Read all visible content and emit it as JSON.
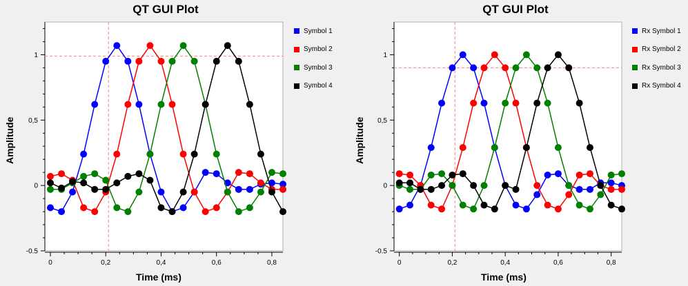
{
  "chart_data": [
    {
      "type": "line",
      "title": "QT GUI Plot",
      "xlabel": "Time (ms)",
      "ylabel": "Amplitude",
      "xlim": [
        -0.02,
        0.84
      ],
      "ylim": [
        -0.5,
        1.25
      ],
      "xticks": [
        "0",
        "0,2",
        "0,4",
        "0,6",
        "0,8"
      ],
      "yticks": [
        "-0.5",
        "0",
        "0,5",
        "1"
      ],
      "marker_x": 0.21,
      "marker_y": 0.99,
      "legend_position": "right",
      "x": [
        0,
        0.04,
        0.08,
        0.12,
        0.16,
        0.2,
        0.24,
        0.28,
        0.32,
        0.36,
        0.4,
        0.44,
        0.48,
        0.52,
        0.56,
        0.6,
        0.64,
        0.68,
        0.72,
        0.76,
        0.8,
        0.84
      ],
      "series": [
        {
          "name": "Symbol 1",
          "color": "#0000ff",
          "values": [
            -0.17,
            -0.2,
            -0.05,
            0.24,
            0.62,
            0.95,
            1.07,
            0.95,
            0.62,
            0.24,
            -0.05,
            -0.2,
            -0.17,
            -0.05,
            0.1,
            0.09,
            0.02,
            -0.03,
            -0.03,
            0.01,
            0.02,
            0.01
          ]
        },
        {
          "name": "Symbol 2",
          "color": "#ff0000",
          "values": [
            0.07,
            0.09,
            0.04,
            -0.17,
            -0.2,
            -0.05,
            0.24,
            0.62,
            0.95,
            1.07,
            0.95,
            0.62,
            0.24,
            -0.05,
            -0.2,
            -0.17,
            -0.05,
            0.1,
            0.09,
            0.02,
            -0.03,
            -0.03
          ]
        },
        {
          "name": "Symbol 3",
          "color": "#008000",
          "values": [
            -0.03,
            -0.03,
            0.02,
            0.07,
            0.09,
            0.04,
            -0.17,
            -0.2,
            -0.05,
            0.24,
            0.62,
            0.95,
            1.07,
            0.95,
            0.62,
            0.24,
            -0.05,
            -0.2,
            -0.17,
            -0.05,
            0.1,
            0.09
          ]
        },
        {
          "name": "Symbol 4",
          "color": "#000000",
          "values": [
            0.02,
            -0.02,
            0.03,
            0.02,
            -0.03,
            -0.03,
            0.02,
            0.07,
            0.09,
            0.04,
            -0.17,
            -0.2,
            -0.05,
            0.24,
            0.62,
            0.95,
            1.07,
            0.95,
            0.62,
            0.24,
            -0.05,
            -0.2
          ]
        }
      ]
    },
    {
      "type": "line",
      "title": "QT GUI Plot",
      "xlabel": "Time (ms)",
      "ylabel": "Amplitude",
      "xlim": [
        -0.02,
        0.84
      ],
      "ylim": [
        -0.5,
        1.25
      ],
      "xticks": [
        "0",
        "0,2",
        "0,4",
        "0,6",
        "0,8"
      ],
      "yticks": [
        "-0.5",
        "0",
        "0,5",
        "1"
      ],
      "marker_x": 0.21,
      "marker_y": 0.9,
      "legend_position": "right",
      "x": [
        0,
        0.04,
        0.08,
        0.12,
        0.16,
        0.2,
        0.24,
        0.28,
        0.32,
        0.36,
        0.4,
        0.44,
        0.48,
        0.52,
        0.56,
        0.6,
        0.64,
        0.68,
        0.72,
        0.76,
        0.8,
        0.84
      ],
      "series": [
        {
          "name": "Rx Symbol 1",
          "color": "#0000ff",
          "values": [
            -0.18,
            -0.15,
            0.0,
            0.29,
            0.63,
            0.9,
            1.0,
            0.9,
            0.63,
            0.29,
            0.0,
            -0.15,
            -0.18,
            -0.07,
            0.08,
            0.09,
            0.0,
            -0.03,
            -0.03,
            0.02,
            0.02,
            0.0
          ]
        },
        {
          "name": "Rx Symbol 2",
          "color": "#ff0000",
          "values": [
            0.09,
            0.08,
            0.0,
            -0.15,
            -0.18,
            0.0,
            0.29,
            0.63,
            0.9,
            1.0,
            0.9,
            0.63,
            0.29,
            0.0,
            -0.15,
            -0.18,
            -0.07,
            0.08,
            0.09,
            0.0,
            -0.03,
            -0.03
          ]
        },
        {
          "name": "Rx Symbol 3",
          "color": "#008000",
          "values": [
            0.0,
            -0.03,
            -0.03,
            0.08,
            0.09,
            0.0,
            -0.15,
            -0.18,
            0.0,
            0.29,
            0.63,
            0.9,
            1.0,
            0.9,
            0.63,
            0.29,
            0.0,
            -0.15,
            -0.18,
            -0.07,
            0.08,
            0.09
          ]
        },
        {
          "name": "Rx Symbol 4",
          "color": "#000000",
          "values": [
            0.02,
            0.02,
            -0.03,
            -0.03,
            0.0,
            0.08,
            0.09,
            0.0,
            -0.15,
            -0.18,
            0.0,
            -0.03,
            0.29,
            0.63,
            0.9,
            1.0,
            0.9,
            0.63,
            0.29,
            0.0,
            -0.15,
            -0.18
          ]
        }
      ]
    }
  ]
}
